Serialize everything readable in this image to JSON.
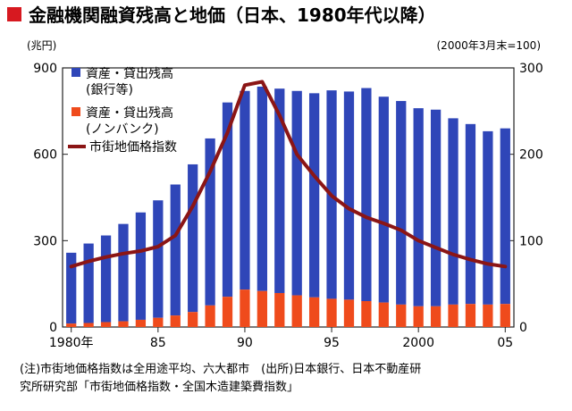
{
  "title": "金融機関融資残高と地価（日本、1980年代以降）",
  "left_unit": "(兆円)",
  "right_unit": "(2000年3月末=100)",
  "legend": [
    {
      "label": "資産・貸出残高",
      "sub": "(銀行等)",
      "color": "#2f46b8"
    },
    {
      "label": "資産・貸出残高",
      "sub": "(ノンバンク)",
      "color": "#ef4b1c"
    },
    {
      "label": "市街地価格指数",
      "sub": "",
      "color": "#8b1515"
    }
  ],
  "x_tick_labels": [
    "1980年",
    "85",
    "90",
    "95",
    "2000",
    "05"
  ],
  "footnote": [
    "(注)市街地価格指数は全用途平均、六大都市　(出所)日本銀行、日本不動産研",
    "究所研究部「市街地価格指数・全国木造建築費指数」"
  ],
  "chart_data": {
    "type": "bar",
    "categories": [
      "1980",
      "1981",
      "1982",
      "1983",
      "1984",
      "1985",
      "1986",
      "1987",
      "1988",
      "1989",
      "1990",
      "1991",
      "1992",
      "1993",
      "1994",
      "1995",
      "1996",
      "1997",
      "1998",
      "1999",
      "2000",
      "2001",
      "2002",
      "2003",
      "2004",
      "2005"
    ],
    "stacked": true,
    "series": [
      {
        "name": "資産・貸出残高(ノンバンク)",
        "type": "bar",
        "axis": "left",
        "values": [
          12,
          14,
          17,
          20,
          25,
          32,
          40,
          52,
          75,
          105,
          130,
          125,
          118,
          110,
          103,
          98,
          95,
          90,
          85,
          78,
          72,
          72,
          78,
          80,
          78,
          80
        ]
      },
      {
        "name": "資産・貸出残高(銀行等)",
        "type": "bar",
        "axis": "left",
        "stack_total": [
          258,
          290,
          318,
          358,
          398,
          440,
          495,
          565,
          655,
          780,
          820,
          835,
          828,
          820,
          812,
          822,
          818,
          830,
          800,
          785,
          760,
          755,
          725,
          705,
          680,
          690
        ]
      },
      {
        "name": "市街地価格指数",
        "type": "line",
        "axis": "right",
        "values": [
          70,
          76,
          81,
          85,
          88,
          93,
          106,
          140,
          180,
          225,
          280,
          284,
          245,
          200,
          175,
          152,
          137,
          127,
          120,
          112,
          100,
          92,
          84,
          78,
          73,
          70
        ]
      }
    ],
    "y_left_lim": [
      0,
      900
    ],
    "y_left_ticks": [
      0,
      300,
      600,
      900
    ],
    "y_right_lim": [
      0,
      300
    ],
    "y_right_ticks": [
      0,
      100,
      200,
      300
    ],
    "grid": false,
    "legend_position": "top-left"
  }
}
